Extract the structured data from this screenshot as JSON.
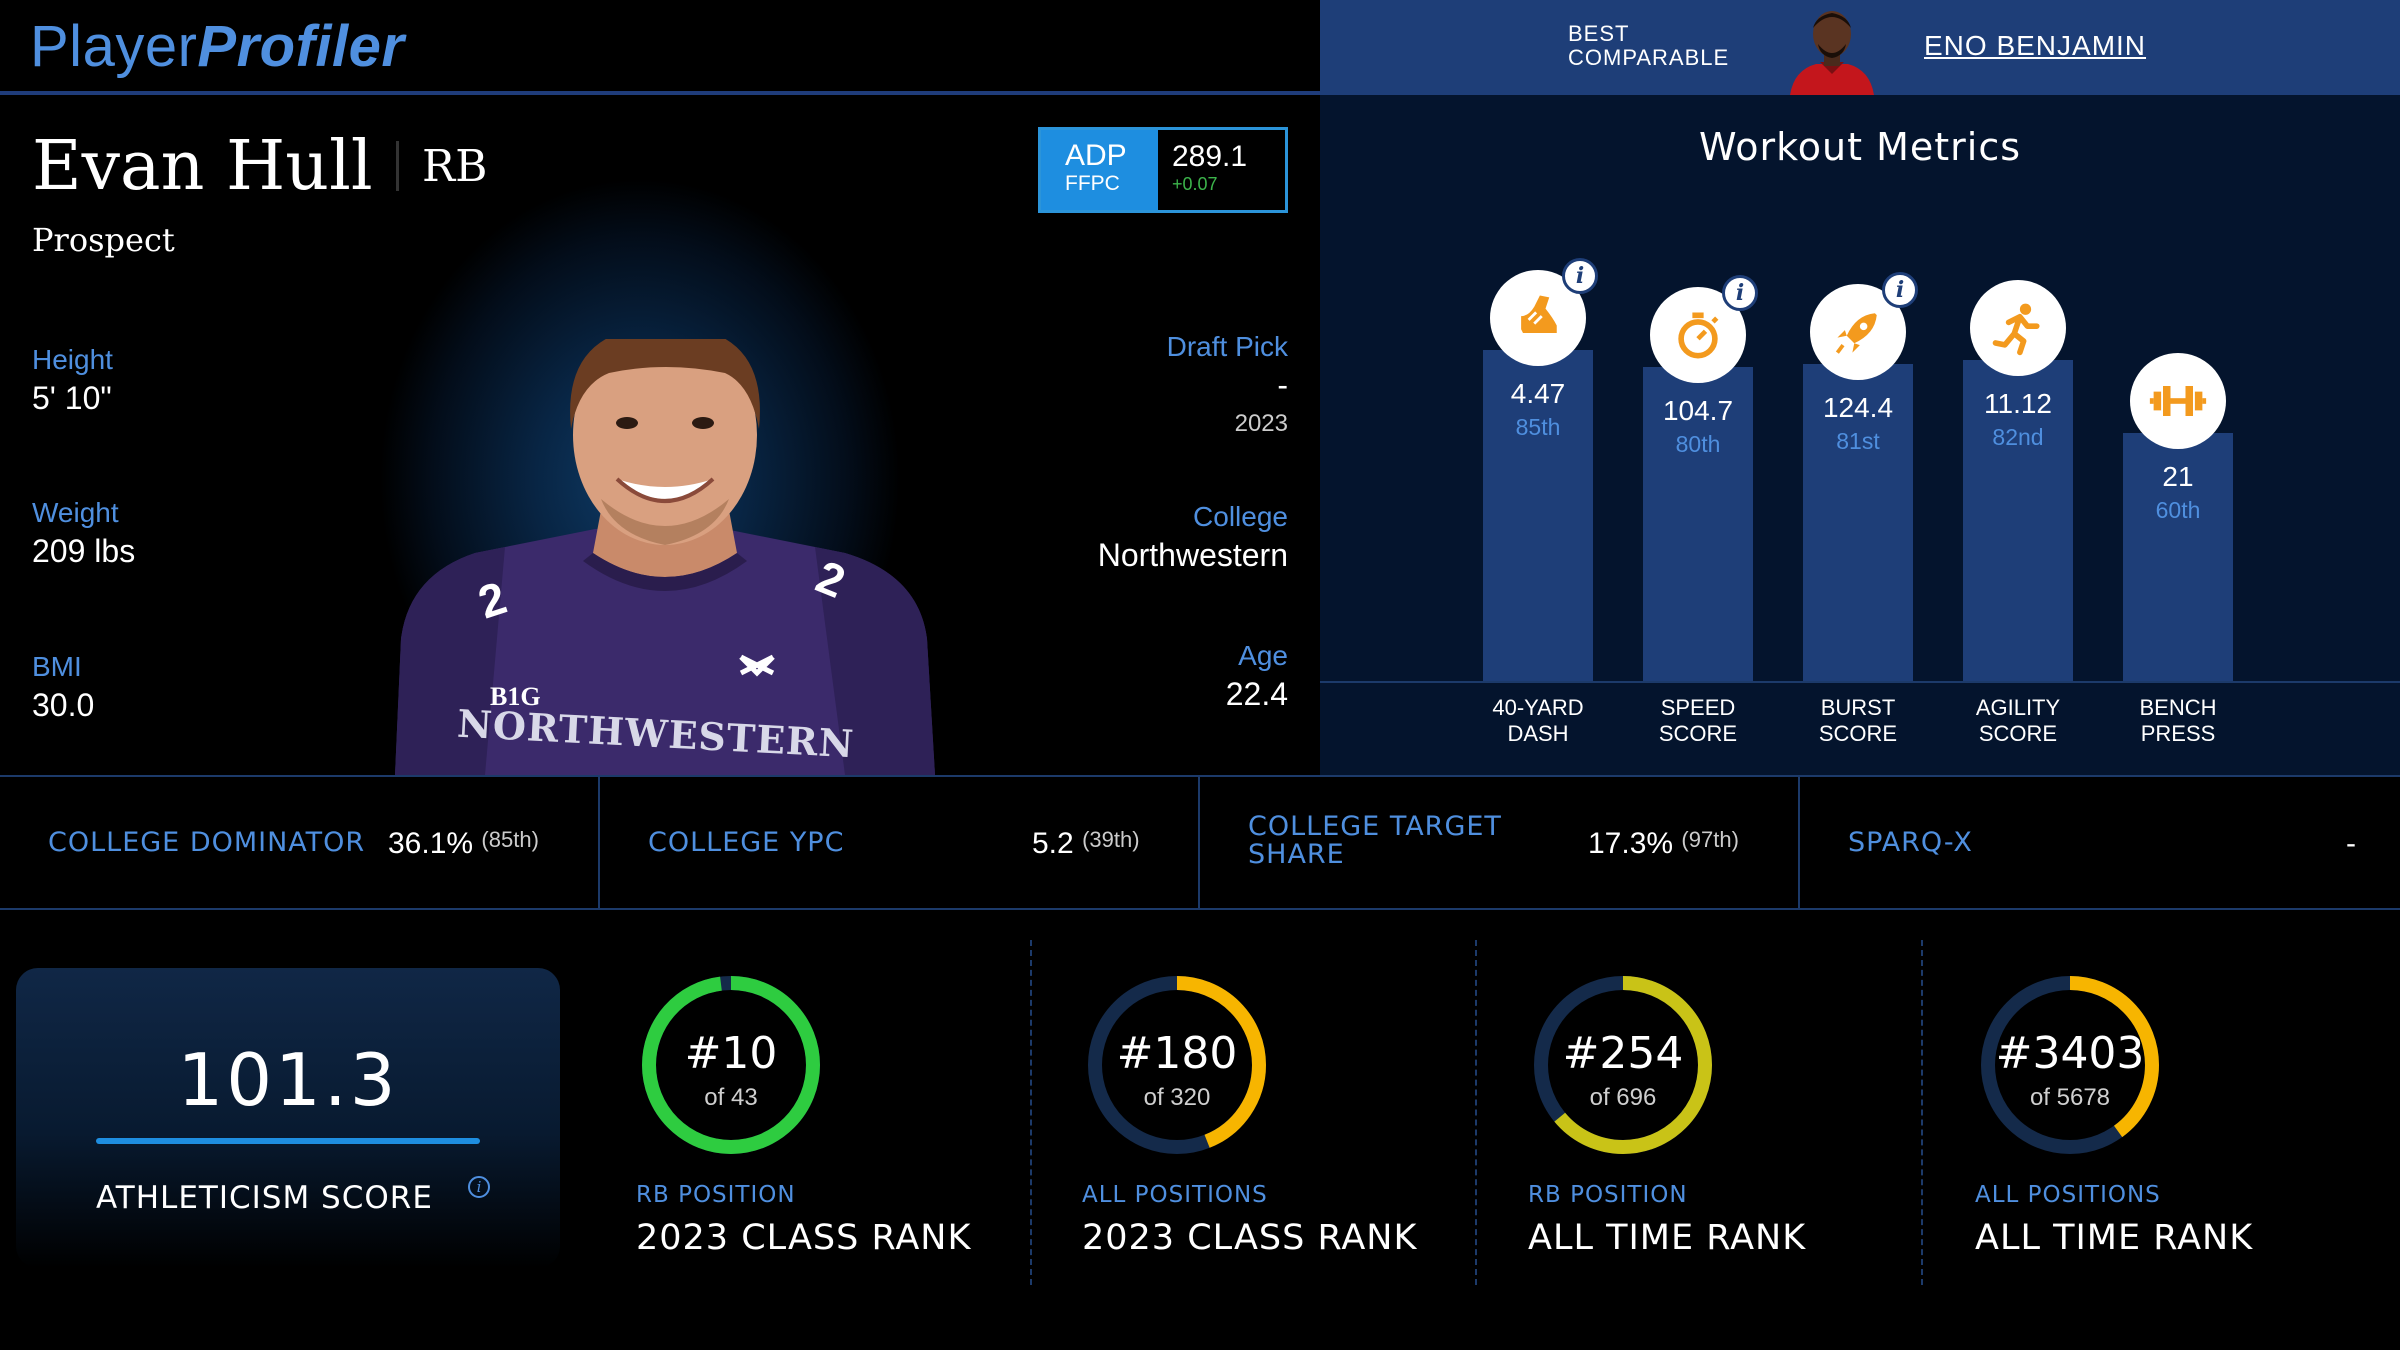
{
  "brand": {
    "part1": "Player",
    "part2": "Profiler"
  },
  "comparable": {
    "label_line1": "BEST",
    "label_line2": "COMPARABLE",
    "name": "ENO BENJAMIN"
  },
  "player": {
    "name": "Evan Hull",
    "position": "RB",
    "status": "Prospect",
    "height": {
      "label": "Height",
      "value": "5' 10\""
    },
    "weight": {
      "label": "Weight",
      "value": "209 lbs"
    },
    "bmi": {
      "label": "BMI",
      "value": "30.0"
    },
    "draft_pick": {
      "label": "Draft Pick",
      "value": "-",
      "year": "2023"
    },
    "college": {
      "label": "College",
      "value": "Northwestern"
    },
    "age": {
      "label": "Age",
      "value": "22.4"
    },
    "jersey_text": "NORTHWESTERN",
    "jersey_badge": "B1G"
  },
  "adp": {
    "label": "ADP",
    "source": "FFPC",
    "value": "289.1",
    "change": "+0.07"
  },
  "workout": {
    "title": "Workout Metrics",
    "metrics": [
      {
        "label1": "40-YARD",
        "label2": "DASH",
        "value": "4.47",
        "pct": "85th",
        "pct_num": 85,
        "icon": "shoe-icon",
        "info": true
      },
      {
        "label1": "SPEED",
        "label2": "SCORE",
        "value": "104.7",
        "pct": "80th",
        "pct_num": 80,
        "icon": "stopwatch-icon",
        "info": true
      },
      {
        "label1": "BURST",
        "label2": "SCORE",
        "value": "124.4",
        "pct": "81st",
        "pct_num": 81,
        "icon": "rocket-icon",
        "info": true
      },
      {
        "label1": "AGILITY",
        "label2": "SCORE",
        "value": "11.12",
        "pct": "82nd",
        "pct_num": 82,
        "icon": "runner-icon",
        "info": false
      },
      {
        "label1": "BENCH",
        "label2": "PRESS",
        "value": "21",
        "pct": "60th",
        "pct_num": 60,
        "icon": "dumbbell-icon",
        "info": false
      }
    ],
    "info_glyph": "i",
    "icon_color": "#f39a1e"
  },
  "college_stats": [
    {
      "label1": "COLLEGE DOMINATOR",
      "label2": "",
      "value": "36.1%",
      "pct": "(85th)"
    },
    {
      "label1": "COLLEGE YPC",
      "label2": "",
      "value": "5.2",
      "pct": "(39th)"
    },
    {
      "label1": "COLLEGE TARGET",
      "label2": "SHARE",
      "value": "17.3%",
      "pct": "(97th)"
    },
    {
      "label1": "SPARQ-X",
      "label2": "",
      "value": "-",
      "pct": ""
    }
  ],
  "athleticism": {
    "score": "101.3",
    "label": "ATHLETICISM SCORE",
    "info_glyph": "i"
  },
  "ranks": [
    {
      "rank": "#10",
      "of": "of 43",
      "scope": "RB POSITION",
      "title": "2023 CLASS RANK",
      "fraction": 0.98,
      "color": "#2ecc40"
    },
    {
      "rank": "#180",
      "of": "of 320",
      "scope": "ALL POSITIONS",
      "title": "2023 CLASS RANK",
      "fraction": 0.44,
      "color": "#f7b500"
    },
    {
      "rank": "#254",
      "of": "of 696",
      "scope": "RB POSITION",
      "title": "ALL TIME RANK",
      "fraction": 0.64,
      "color": "#c9c317"
    },
    {
      "rank": "#3403",
      "of": "of 5678",
      "scope": "ALL POSITIONS",
      "title": "ALL TIME RANK",
      "fraction": 0.4,
      "color": "#f7b500"
    }
  ],
  "colors": {
    "accent": "#4f8fdf",
    "bar": "#1e3e78",
    "ring_track": "#142a4a"
  }
}
